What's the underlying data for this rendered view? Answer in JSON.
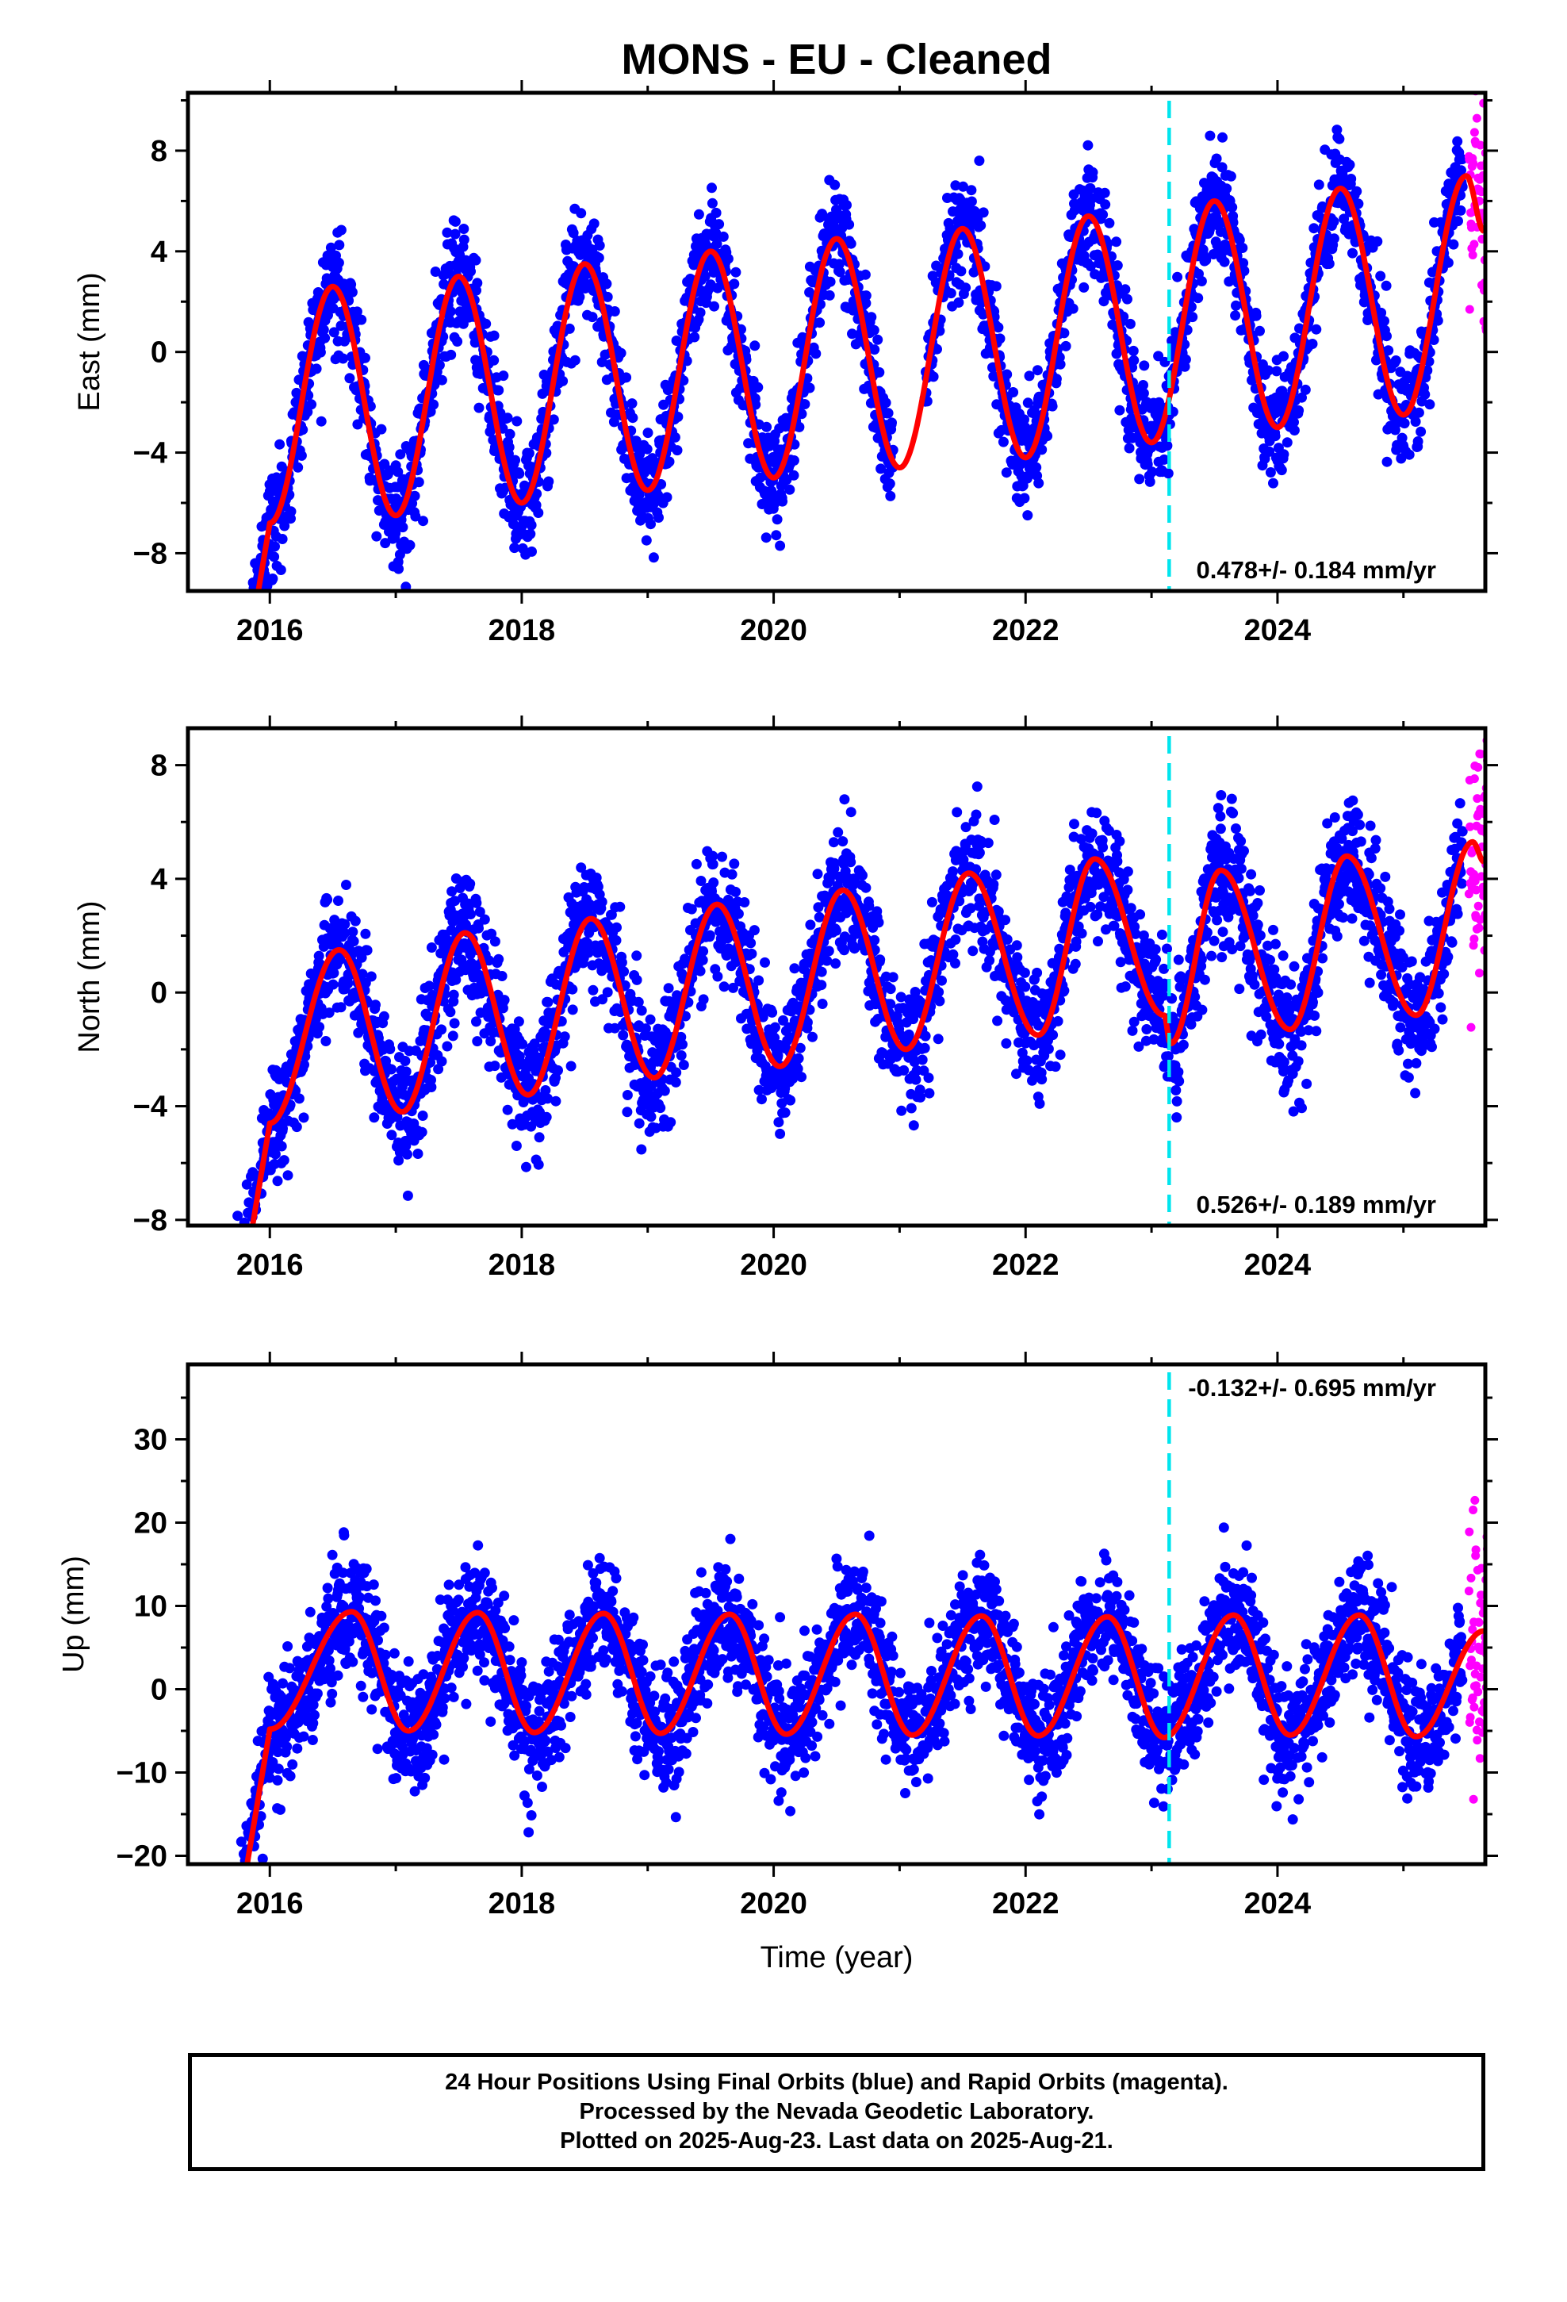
{
  "title": "MONS  - EU - Cleaned",
  "xlabel": "Time (year)",
  "footer": {
    "line1": "24 Hour Positions Using Final Orbits (blue) and Rapid Orbits (magenta).",
    "line2": "Processed by the Nevada Geodetic Laboratory.",
    "line3": "Plotted on 2025-Aug-23. Last data on 2025-Aug-21."
  },
  "colors": {
    "final_points": "#0000ff",
    "rapid_points": "#ff00ff",
    "model_fit": "#ff0000",
    "offset_line": "#00e5ee",
    "frame": "#000000"
  },
  "chart_data": [
    {
      "type": "scatter",
      "ylabel": "East (mm)",
      "xlim": [
        2015.35,
        2025.65
      ],
      "ylim": [
        -9.5,
        10.3
      ],
      "xticks": [
        2016,
        2018,
        2020,
        2022,
        2024
      ],
      "yticks": [
        -8,
        -4,
        0,
        4,
        8
      ],
      "rate_label": "0.478+/- 0.184 mm/yr",
      "rate_position": "bottom-right",
      "offset_epoch": 2023.14,
      "data_span": [
        2015.7,
        2025.47
      ],
      "rapid_span": [
        2025.47,
        2025.64
      ],
      "fit_peaks": [
        [
          2016.0,
          -6.8
        ],
        [
          2016.5,
          2.6
        ],
        [
          2017.0,
          -6.5
        ],
        [
          2017.5,
          3.0
        ],
        [
          2018.0,
          -6.0
        ],
        [
          2018.5,
          3.5
        ],
        [
          2019.0,
          -5.5
        ],
        [
          2019.5,
          4.0
        ],
        [
          2020.0,
          -5.0
        ],
        [
          2020.5,
          4.5
        ],
        [
          2021.0,
          -4.6
        ],
        [
          2021.5,
          4.9
        ],
        [
          2022.0,
          -4.2
        ],
        [
          2022.5,
          5.4
        ],
        [
          2023.0,
          -3.6
        ],
        [
          2023.5,
          6.0
        ],
        [
          2024.0,
          -3.0
        ],
        [
          2024.5,
          6.5
        ],
        [
          2025.0,
          -2.5
        ],
        [
          2025.5,
          7.0
        ]
      ],
      "fit_end": [
        2025.64,
        4.8
      ],
      "scatter_sd": 1.1,
      "grid": false
    },
    {
      "type": "scatter",
      "ylabel": "North (mm)",
      "xlim": [
        2015.35,
        2025.65
      ],
      "ylim": [
        -8.2,
        9.3
      ],
      "xticks": [
        2016,
        2018,
        2020,
        2022,
        2024
      ],
      "yticks": [
        -8,
        -4,
        0,
        4,
        8
      ],
      "rate_label": "0.526+/- 0.189 mm/yr",
      "rate_position": "bottom-right",
      "offset_epoch": 2023.14,
      "data_span": [
        2015.7,
        2025.47
      ],
      "rapid_span": [
        2025.47,
        2025.64
      ],
      "fit_peaks": [
        [
          2016.0,
          -4.6
        ],
        [
          2016.55,
          1.5
        ],
        [
          2017.05,
          -4.2
        ],
        [
          2017.55,
          2.1
        ],
        [
          2018.05,
          -3.6
        ],
        [
          2018.55,
          2.6
        ],
        [
          2019.05,
          -3.0
        ],
        [
          2019.55,
          3.1
        ],
        [
          2020.05,
          -2.6
        ],
        [
          2020.55,
          3.6
        ],
        [
          2021.05,
          -2.0
        ],
        [
          2021.55,
          4.2
        ],
        [
          2022.1,
          -1.5
        ],
        [
          2022.55,
          4.7
        ],
        [
          2023.1,
          -0.8
        ],
        [
          2023.15,
          -1.8
        ],
        [
          2023.55,
          4.3
        ],
        [
          2024.1,
          -1.3
        ],
        [
          2024.55,
          4.8
        ],
        [
          2025.1,
          -0.8
        ],
        [
          2025.55,
          5.3
        ]
      ],
      "fit_end": [
        2025.64,
        4.6
      ],
      "scatter_sd": 1.1,
      "grid": false
    },
    {
      "type": "scatter",
      "ylabel": "Up (mm)",
      "xlim": [
        2015.35,
        2025.65
      ],
      "ylim": [
        -21,
        39
      ],
      "xticks": [
        2016,
        2018,
        2020,
        2022,
        2024
      ],
      "yticks": [
        -20,
        -10,
        0,
        10,
        20,
        30
      ],
      "rate_label": "-0.132+/- 0.695 mm/yr",
      "rate_position": "top-right",
      "offset_epoch": 2023.14,
      "data_span": [
        2015.7,
        2025.47
      ],
      "rapid_span": [
        2025.47,
        2025.64
      ],
      "fit_peaks": [
        [
          2016.0,
          -4.8
        ],
        [
          2016.65,
          9.3
        ],
        [
          2017.1,
          -5.0
        ],
        [
          2017.65,
          9.2
        ],
        [
          2018.1,
          -5.2
        ],
        [
          2018.65,
          9.1
        ],
        [
          2019.1,
          -5.3
        ],
        [
          2019.65,
          9.0
        ],
        [
          2020.1,
          -5.4
        ],
        [
          2020.65,
          9.0
        ],
        [
          2021.1,
          -5.5
        ],
        [
          2021.65,
          8.8
        ],
        [
          2022.1,
          -5.6
        ],
        [
          2022.65,
          8.7
        ],
        [
          2023.1,
          -5.8
        ],
        [
          2023.65,
          8.9
        ],
        [
          2024.1,
          -5.5
        ],
        [
          2024.65,
          8.9
        ],
        [
          2025.1,
          -5.7
        ],
        [
          2025.64,
          7.0
        ]
      ],
      "fit_end": [
        2025.64,
        7.0
      ],
      "scatter_sd": 3.6,
      "grid": false
    }
  ]
}
